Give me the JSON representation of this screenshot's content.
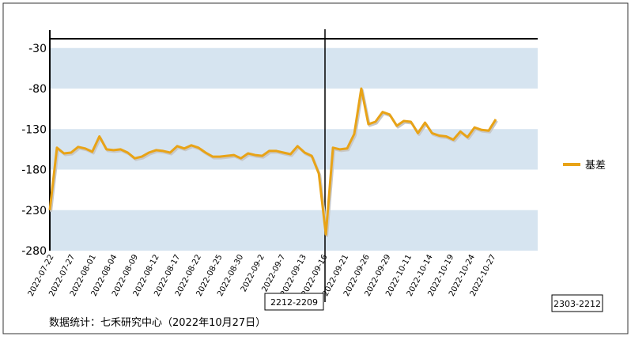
{
  "chart_data": {
    "type": "line",
    "title": "",
    "xlabel": "",
    "ylabel": "",
    "ylim": [
      -280,
      0
    ],
    "yticks": [
      -30,
      -80,
      -130,
      -180,
      -230,
      -280
    ],
    "grid": "alternating horizontal bands",
    "legend_position": "right",
    "colors": {
      "series": "#e8a317",
      "series_shadow": "#c8c8c8",
      "band": "#d6e4f0",
      "axis": "#000000"
    },
    "x_tick_labels": [
      "2022-07-22",
      "2022-07-27",
      "2022-08-01",
      "2022-08-04",
      "2022-08-09",
      "2022-08-12",
      "2022-08-17",
      "2022-08-22",
      "2022-08-25",
      "2022-08-30",
      "2022-09-2",
      "2022-09-7",
      "2022-09-13",
      "2022-09-16",
      "2022-09-21",
      "2022-09-26",
      "2022-09-29",
      "2022-10-11",
      "2022-10-14",
      "2022-10-19",
      "2022-10-24",
      "2022-10-27"
    ],
    "series": [
      {
        "name": "基差",
        "values": [
          -230,
          -153,
          -160,
          -159,
          -152,
          -154,
          -158,
          -139,
          -155,
          -156,
          -155,
          -159,
          -166,
          -164,
          -159,
          -156,
          -157,
          -159,
          -151,
          -154,
          -150,
          -153,
          -159,
          -164,
          -164,
          -163,
          -162,
          -166,
          -160,
          -162,
          -163,
          -157,
          -157,
          -159,
          -161,
          -151,
          -159,
          -163,
          -185,
          -260,
          -153,
          -155,
          -154,
          -136,
          -80,
          -124,
          -121,
          -109,
          -112,
          -126,
          -120,
          -121,
          -135,
          -122,
          -135,
          -138,
          -139,
          -143,
          -133,
          -140,
          -128,
          -131,
          -132,
          -118
        ]
      }
    ],
    "annotations": {
      "contract_boundary_label": "2212-2209",
      "contract_next_label": "2303-2212"
    },
    "source_note": "数据统计：七禾研究中心（2022年10月27日）"
  }
}
